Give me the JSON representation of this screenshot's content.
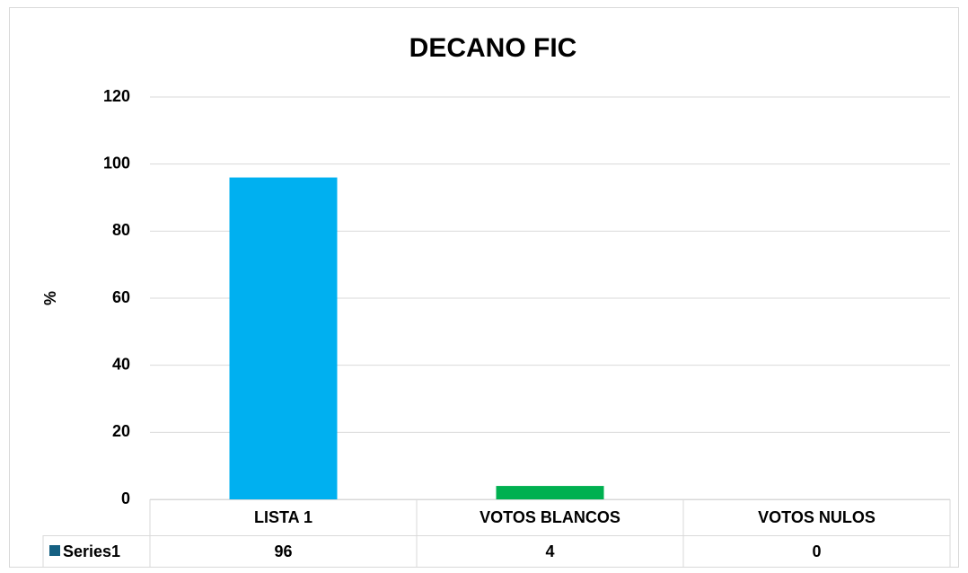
{
  "chart_data": {
    "type": "bar",
    "title": "DECANO FIC",
    "ylabel": "%",
    "categories": [
      "LISTA 1",
      "VOTOS BLANCOS",
      "VOTOS NULOS"
    ],
    "series": [
      {
        "name": "Series1",
        "color": "#156082",
        "bar_colors": [
          "#00b0f0",
          "#00b050",
          "#ffc000"
        ],
        "values": [
          96,
          4,
          0
        ]
      }
    ],
    "ylim": [
      0,
      120
    ],
    "yticks": [
      0,
      20,
      40,
      60,
      80,
      100,
      120
    ],
    "grid": true
  }
}
